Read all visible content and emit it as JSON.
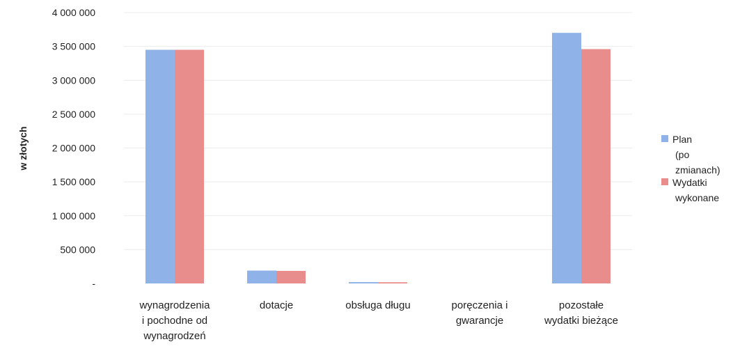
{
  "chart_data": {
    "type": "bar",
    "title": "",
    "xlabel": "",
    "ylabel": "w złotych",
    "ylim": [
      0,
      4000000
    ],
    "grid": true,
    "legend_position": "right",
    "y_ticks": [
      {
        "value": 0,
        "label": "-"
      },
      {
        "value": 500000,
        "label": "500 000"
      },
      {
        "value": 1000000,
        "label": "1 000 000"
      },
      {
        "value": 1500000,
        "label": "1 500 000"
      },
      {
        "value": 2000000,
        "label": "2 000 000"
      },
      {
        "value": 2500000,
        "label": "2 500 000"
      },
      {
        "value": 3000000,
        "label": "3 000 000"
      },
      {
        "value": 3500000,
        "label": "3 500 000"
      },
      {
        "value": 4000000,
        "label": "4 000 000"
      }
    ],
    "categories": [
      [
        "wynagrodzenia",
        "i pochodne od",
        "wynagrodzeń"
      ],
      [
        "dotacje"
      ],
      [
        "obsługa długu"
      ],
      [
        "poręczenia i",
        "gwarancje"
      ],
      [
        "pozostałe",
        "wydatki bieżące"
      ]
    ],
    "series": [
      {
        "legend_lines": [
          "Plan",
          "(po",
          "zmianach)"
        ],
        "color": "#8FB2E8",
        "values": [
          3450000,
          190000,
          20000,
          0,
          3700000
        ]
      },
      {
        "legend_lines": [
          "Wydatki",
          "wykonane"
        ],
        "color": "#E88C8C",
        "values": [
          3450000,
          185000,
          18000,
          0,
          3460000
        ]
      }
    ]
  }
}
